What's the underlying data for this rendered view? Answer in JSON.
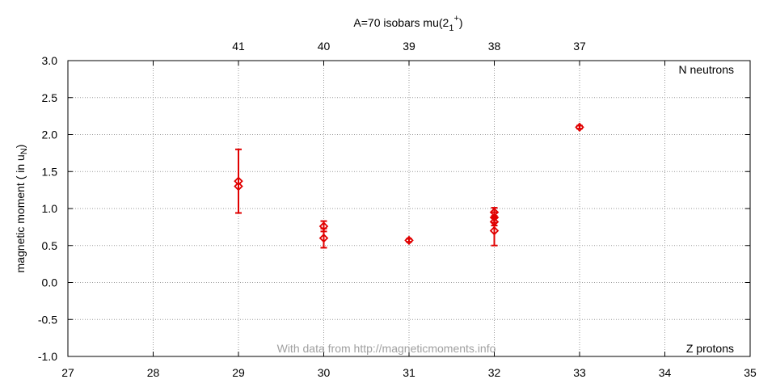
{
  "chart_data": {
    "type": "scatter",
    "title": "A=70 isobars mu(2",
    "title_subscript": "1",
    "title_superscript": "+",
    "title_close": ")",
    "ylabel": "magnetic moment ( in u",
    "ylabel_subscript": "N",
    "ylabel_close": ")",
    "corner_label_top": "N neutrons",
    "corner_label_bottom": "Z protons",
    "watermark": "With data from http://magneticmoments.info",
    "xlim": [
      27,
      35
    ],
    "ylim": [
      -1.0,
      3.0
    ],
    "x_ticks": [
      27,
      28,
      29,
      30,
      31,
      32,
      33,
      34,
      35
    ],
    "y_ticks": [
      3.0,
      2.5,
      2.0,
      1.5,
      1.0,
      0.5,
      0.0,
      -0.5,
      -1.0
    ],
    "y_tick_labels": [
      "3.0",
      "2.5",
      "2.0",
      "1.5",
      "1.0",
      "0.5",
      "0.0",
      "-0.5",
      "-1.0"
    ],
    "top_axis": [
      {
        "z": 29,
        "label": "41"
      },
      {
        "z": 30,
        "label": "40"
      },
      {
        "z": 31,
        "label": "39"
      },
      {
        "z": 32,
        "label": "38"
      },
      {
        "z": 33,
        "label": "37"
      }
    ],
    "grid": true,
    "marker": "diamond",
    "color": "#e00000",
    "watermark_color": "#a0a0a0",
    "points": [
      {
        "x": 29,
        "y": 1.37,
        "err": 0.43
      },
      {
        "x": 29,
        "y": 1.3,
        "err": 0
      },
      {
        "x": 30,
        "y": 0.76,
        "err": 0.07
      },
      {
        "x": 30,
        "y": 0.6,
        "err": 0.13
      },
      {
        "x": 31,
        "y": 0.57,
        "err": 0.02
      },
      {
        "x": 32,
        "y": 0.95,
        "err": 0.06
      },
      {
        "x": 32,
        "y": 0.88,
        "err": 0.07
      },
      {
        "x": 32,
        "y": 0.82,
        "err": 0.05
      },
      {
        "x": 32,
        "y": 0.7,
        "err": 0.2
      },
      {
        "x": 33,
        "y": 2.1,
        "err": 0.02
      }
    ]
  }
}
